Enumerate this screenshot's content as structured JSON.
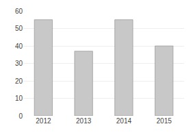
{
  "chart_data": {
    "type": "bar",
    "categories": [
      "2012",
      "2013",
      "2014",
      "2015"
    ],
    "values": [
      55,
      37,
      55,
      40
    ],
    "color": "#c8c8c8",
    "ylim": [
      0,
      60
    ],
    "yticks": [
      0,
      10,
      20,
      30,
      40,
      50,
      60
    ],
    "grid": true
  }
}
